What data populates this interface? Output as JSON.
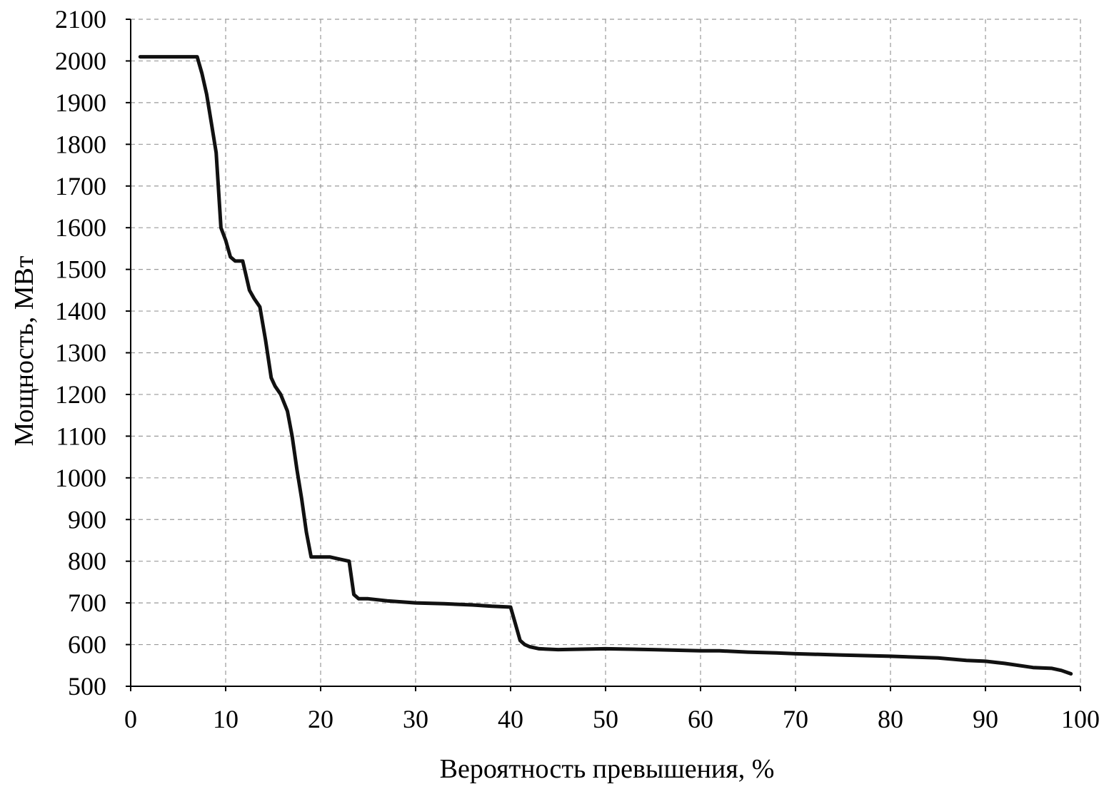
{
  "chart_data": {
    "type": "line",
    "title": "",
    "xlabel": "Вероятность превышения, %",
    "ylabel": "Мощность, МВт",
    "xlim": [
      0,
      100
    ],
    "ylim": [
      500,
      2100
    ],
    "xticks": [
      0,
      10,
      20,
      30,
      40,
      50,
      60,
      70,
      80,
      90,
      100
    ],
    "yticks": [
      500,
      600,
      700,
      800,
      900,
      1000,
      1100,
      1200,
      1300,
      1400,
      1500,
      1600,
      1700,
      1800,
      1900,
      2000,
      2100
    ],
    "grid": true,
    "legend": "none",
    "series": [
      {
        "color": "#111111",
        "x": [
          1,
          3,
          5,
          7,
          7.5,
          8,
          8.5,
          9,
          9.5,
          10,
          10.5,
          11,
          11.8,
          12.5,
          13,
          13.6,
          14.2,
          14.8,
          15.2,
          15.8,
          16.5,
          17,
          17.5,
          18,
          18.5,
          19,
          19.5,
          20,
          21,
          22,
          23,
          23.5,
          24,
          25,
          27,
          30,
          33,
          36,
          38,
          40,
          40.5,
          41,
          41.5,
          42,
          43,
          45,
          50,
          55,
          60,
          62,
          65,
          68,
          70,
          75,
          80,
          85,
          88,
          90,
          92,
          95,
          97,
          98,
          99
        ],
        "y": [
          2010,
          2010,
          2010,
          2010,
          1970,
          1920,
          1850,
          1780,
          1600,
          1570,
          1530,
          1520,
          1520,
          1450,
          1430,
          1410,
          1330,
          1240,
          1220,
          1200,
          1160,
          1100,
          1020,
          950,
          870,
          810,
          810,
          810,
          810,
          805,
          800,
          720,
          710,
          710,
          705,
          700,
          698,
          695,
          692,
          690,
          650,
          610,
          600,
          595,
          590,
          588,
          590,
          588,
          585,
          585,
          582,
          580,
          578,
          575,
          572,
          568,
          562,
          560,
          555,
          545,
          543,
          538,
          530
        ]
      }
    ]
  }
}
